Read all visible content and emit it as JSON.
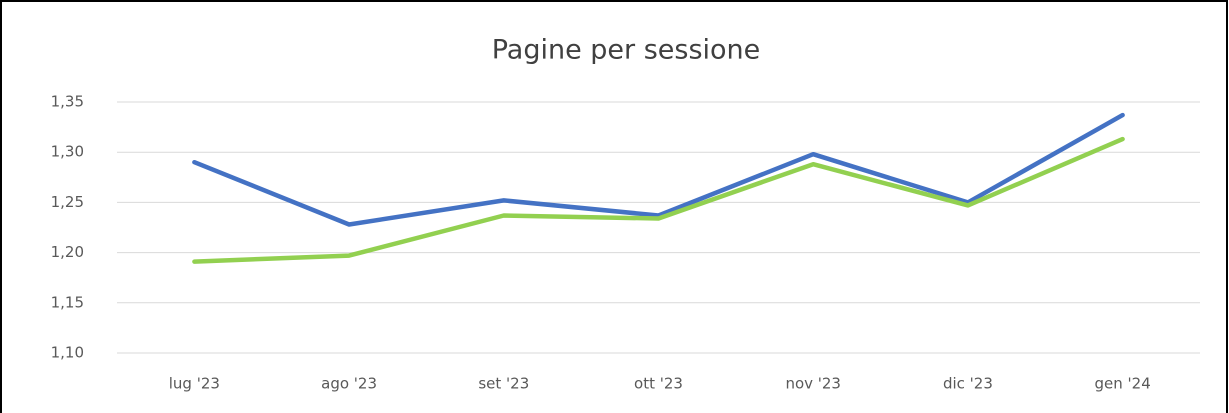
{
  "chart_data": {
    "type": "line",
    "title": "Pagine per sessione",
    "categories": [
      "lug '23",
      "ago '23",
      "set '23",
      "ott '23",
      "nov '23",
      "dic '23",
      "gen '24"
    ],
    "series": [
      {
        "color": "#4472c4",
        "values": [
          1.29,
          1.228,
          1.252,
          1.237,
          1.298,
          1.25,
          1.337
        ]
      },
      {
        "color": "#92d050",
        "values": [
          1.191,
          1.197,
          1.237,
          1.234,
          1.288,
          1.247,
          1.313
        ]
      }
    ],
    "ylim": [
      1.1,
      1.35
    ],
    "yticks": [
      {
        "value": 1.1,
        "label": "1,10"
      },
      {
        "value": 1.15,
        "label": "1,15"
      },
      {
        "value": 1.2,
        "label": "1,20"
      },
      {
        "value": 1.25,
        "label": "1,25"
      },
      {
        "value": 1.3,
        "label": "1,30"
      },
      {
        "value": 1.35,
        "label": "1,35"
      }
    ],
    "grid": true
  }
}
